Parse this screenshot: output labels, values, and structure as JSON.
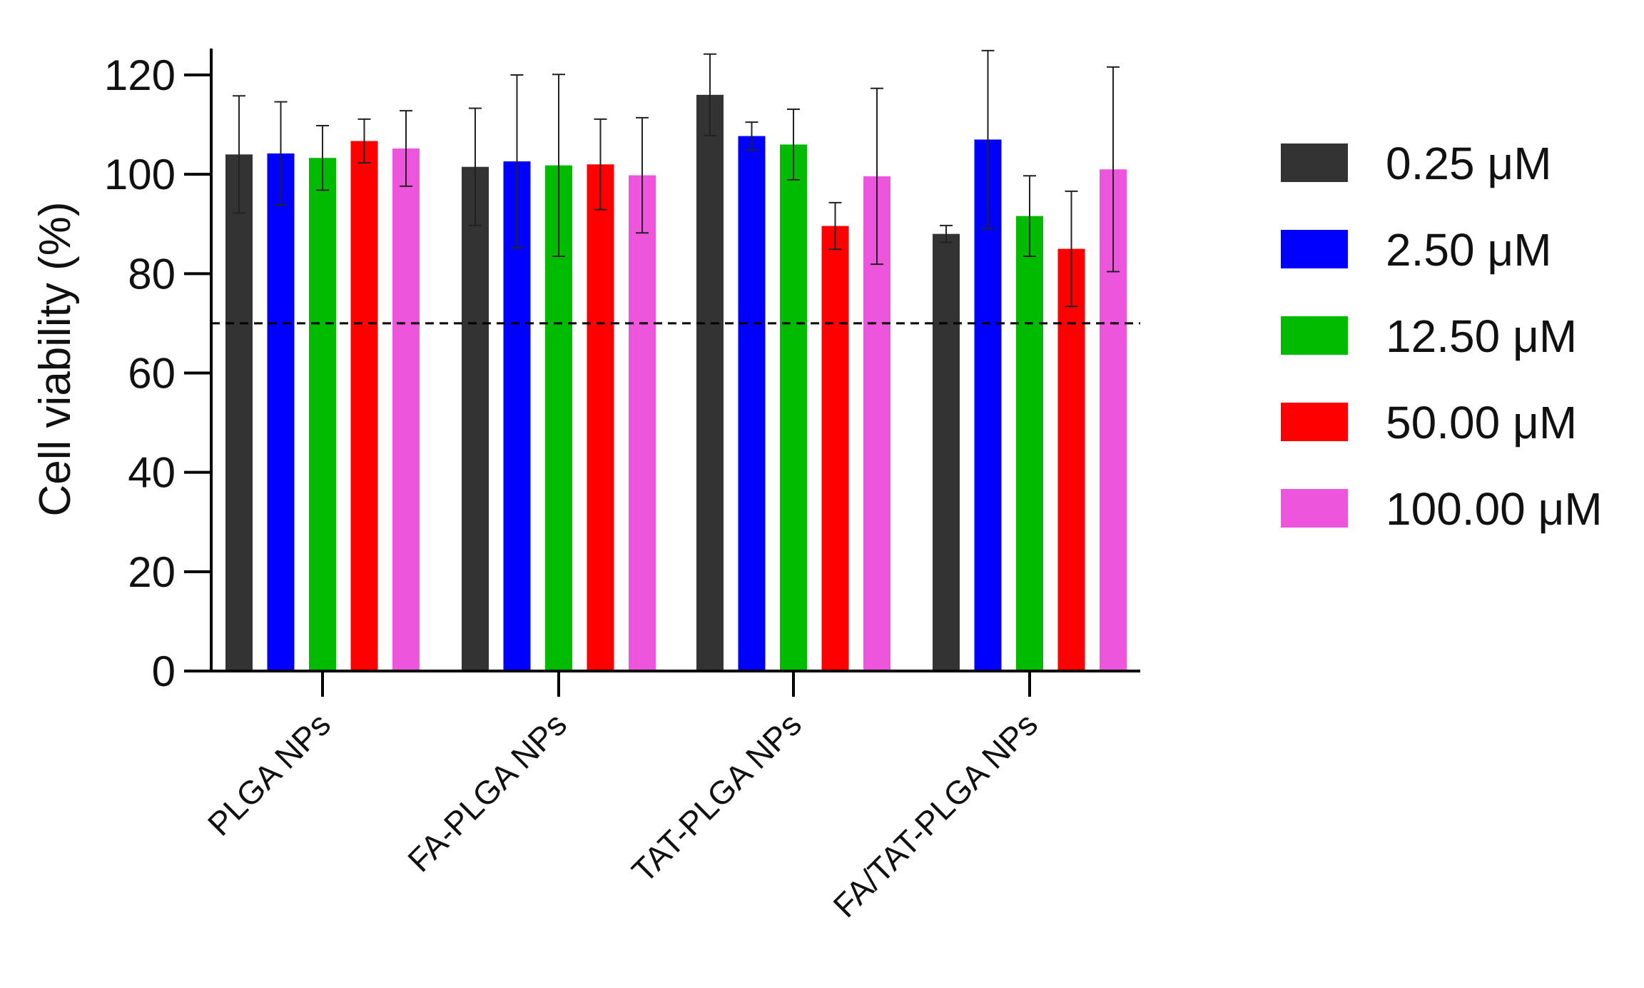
{
  "chart_data": {
    "type": "bar",
    "title": "",
    "xlabel": "",
    "ylabel": "Cell viability (%)",
    "ylim": [
      0,
      125
    ],
    "yticks": [
      0,
      20,
      40,
      60,
      80,
      100,
      120
    ],
    "ytick_labels": [
      "0",
      "20",
      "40",
      "60",
      "80",
      "100",
      "120"
    ],
    "categories": [
      "PLGA NPs",
      "FA-PLGA NPs",
      "TAT-PLGA NPs",
      "FA/TAT-PLGA NPs"
    ],
    "reference_line": {
      "y": 70,
      "style": "dashed"
    },
    "legend_position": "right",
    "series": [
      {
        "name": "0.25 μM",
        "color": "#333333",
        "values": [
          104,
          101.5,
          116,
          88
        ],
        "errors": [
          11.8,
          11.8,
          8.2,
          1.7
        ]
      },
      {
        "name": "2.50 μM",
        "color": "#0000ff",
        "values": [
          104.2,
          102.6,
          107.7,
          107
        ],
        "errors": [
          10.4,
          17.4,
          2.8,
          17.9
        ]
      },
      {
        "name": "12.50 μM",
        "color": "#00bb00",
        "values": [
          103.3,
          101.8,
          106,
          91.6
        ],
        "errors": [
          6.5,
          18.3,
          7.1,
          8.1
        ]
      },
      {
        "name": "50.00 μM",
        "color": "#ff0000",
        "values": [
          106.7,
          102,
          89.6,
          85
        ],
        "errors": [
          4.4,
          9.1,
          4.7,
          11.6
        ]
      },
      {
        "name": "100.00 μM",
        "color": "#ee55dd",
        "values": [
          105.2,
          99.8,
          99.6,
          101
        ],
        "errors": [
          7.6,
          11.6,
          17.7,
          20.6
        ]
      }
    ]
  }
}
